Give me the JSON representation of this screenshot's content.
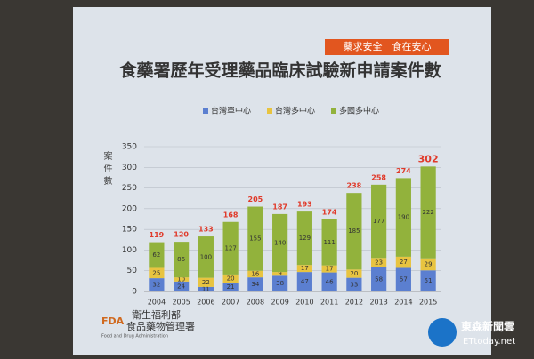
{
  "chart_data": {
    "type": "stacked_bar",
    "title": "食藥署歷年受理藥品臨床試驗新申請案件數",
    "y_label": "案件數",
    "categories": [
      "2004",
      "2005",
      "2006",
      "2007",
      "2008",
      "2009",
      "2010",
      "2011",
      "2012",
      "2013",
      "2014",
      "2015"
    ],
    "series": [
      {
        "name": "台灣單中心",
        "color": "#5b7fd0",
        "values": [
          32,
          24,
          11,
          21,
          34,
          38,
          47,
          46,
          33,
          58,
          57,
          51
        ]
      },
      {
        "name": "台灣多中心",
        "color": "#e8c440",
        "values": [
          25,
          10,
          22,
          20,
          16,
          9,
          17,
          17,
          20,
          23,
          27,
          29
        ]
      },
      {
        "name": "多國多中心",
        "color": "#92b23c",
        "values": [
          62,
          86,
          100,
          127,
          155,
          140,
          129,
          111,
          185,
          177,
          190,
          222
        ]
      }
    ],
    "totals": [
      119,
      120,
      133,
      168,
      205,
      187,
      193,
      174,
      238,
      258,
      274,
      302
    ],
    "ylim": [
      0,
      350
    ],
    "yticks": [
      0,
      50,
      100,
      150,
      200,
      250,
      300,
      350
    ],
    "grid": true
  },
  "banner": "藥求安全　食在安心",
  "logo": {
    "mark": "FDA",
    "ministry": "衛生福利部",
    "agency": "食品藥物管理署",
    "english": "Food and Drug Administration"
  },
  "watermark": {
    "name": "東森新聞雲",
    "site": "ETtoday.net"
  }
}
